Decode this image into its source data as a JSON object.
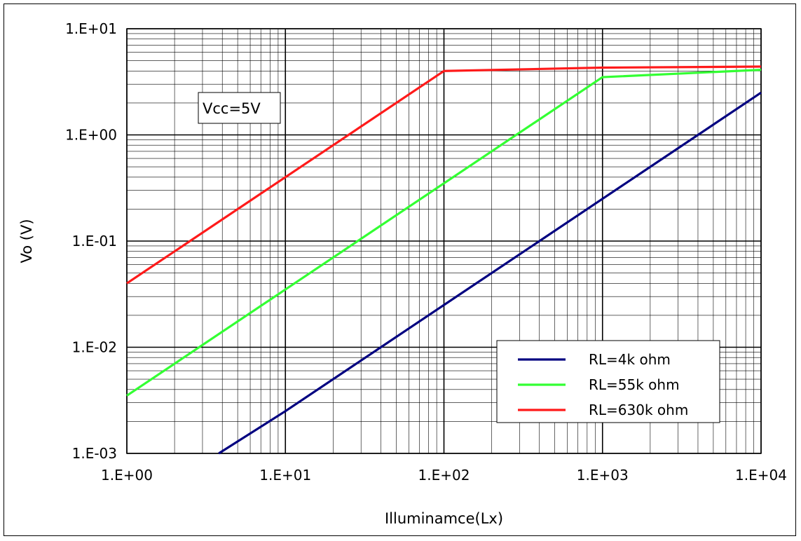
{
  "chart_data": {
    "type": "line",
    "xlabel": "Illuminamce(Lx)",
    "ylabel": "Vo (V)",
    "xscale": "log",
    "yscale": "log",
    "xlim": [
      1,
      10000
    ],
    "ylim": [
      0.001,
      10
    ],
    "grid": true,
    "legend_position": "bottom-right",
    "x_tick_labels": [
      "1.E+00",
      "1.E+01",
      "1.E+02",
      "1.E+03",
      "1.E+04"
    ],
    "y_tick_labels": [
      "1.E-03",
      "1.E-02",
      "1.E-01",
      "1.E+00",
      "1.E+01"
    ],
    "annotation": "Vcc=5V",
    "series": [
      {
        "name": "RL=4k ohm",
        "color": "#000080",
        "x": [
          3.8,
          10,
          100,
          1000,
          10000
        ],
        "y": [
          0.001,
          0.0025,
          0.025,
          0.25,
          2.5
        ]
      },
      {
        "name": "RL=55k ohm",
        "color": "#33ff33",
        "x": [
          1,
          10,
          100,
          1000,
          10000
        ],
        "y": [
          0.0035,
          0.035,
          0.35,
          3.5,
          4.1
        ]
      },
      {
        "name": "RL=630k ohm",
        "color": "#ff1a1a",
        "x": [
          1,
          10,
          100,
          1000,
          10000
        ],
        "y": [
          0.04,
          0.4,
          4.0,
          4.3,
          4.4
        ]
      }
    ]
  }
}
